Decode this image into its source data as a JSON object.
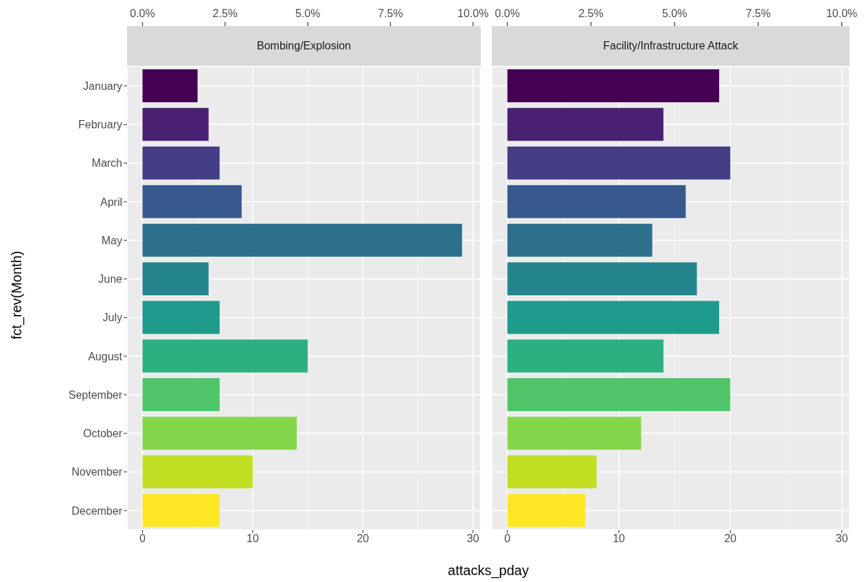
{
  "chart_data": [
    {
      "type": "bar",
      "orientation": "horizontal",
      "title": "Bombing/Explosion",
      "xlabel": "attacks_pday",
      "ylabel": "fct_rev(Month)",
      "categories": [
        "January",
        "February",
        "March",
        "April",
        "May",
        "June",
        "July",
        "August",
        "September",
        "October",
        "November",
        "December"
      ],
      "values": [
        5,
        6,
        7,
        9,
        29,
        6,
        7,
        15,
        7,
        14,
        10,
        7
      ],
      "colors": [
        "#440154",
        "#482173",
        "#433e85",
        "#38598c",
        "#2d708e",
        "#25858e",
        "#1e9b8a",
        "#2bb07f",
        "#51c56a",
        "#85d54a",
        "#c2df23",
        "#fde725"
      ],
      "xlim": [
        -1.4,
        30.7
      ],
      "xticks": [
        0,
        10,
        20,
        30
      ],
      "x2lim": [
        -0.467,
        10.233
      ],
      "x2ticks": [
        {
          "value": 0,
          "label": "0.0%"
        },
        {
          "value": 2.5,
          "label": "2.5%"
        },
        {
          "value": 5,
          "label": "5.0%"
        },
        {
          "value": 7.5,
          "label": "7.5%"
        },
        {
          "value": 10,
          "label": "10.0%"
        }
      ],
      "grid": true,
      "legend": false
    },
    {
      "type": "bar",
      "orientation": "horizontal",
      "title": "Facility/Infrastructure Attack",
      "values": [
        19,
        14,
        20,
        16,
        13,
        17,
        19,
        14,
        20,
        12,
        8,
        7
      ],
      "colors": [
        "#440154",
        "#482173",
        "#433e85",
        "#38598c",
        "#2d708e",
        "#25858e",
        "#1e9b8a",
        "#2bb07f",
        "#51c56a",
        "#85d54a",
        "#c2df23",
        "#fde725"
      ],
      "xlim": [
        -1.4,
        30.7
      ],
      "xticks": [
        0,
        10,
        20,
        30
      ],
      "x2lim": [
        -0.467,
        10.233
      ],
      "x2ticks": [
        {
          "value": 0,
          "label": "0.0%"
        },
        {
          "value": 2.5,
          "label": "2.5%"
        },
        {
          "value": 5,
          "label": "5.0%"
        },
        {
          "value": 7.5,
          "label": "7.5%"
        },
        {
          "value": 10,
          "label": "10.0%"
        }
      ],
      "grid": true,
      "legend": false,
      "tick_labels": "x"
    }
  ]
}
